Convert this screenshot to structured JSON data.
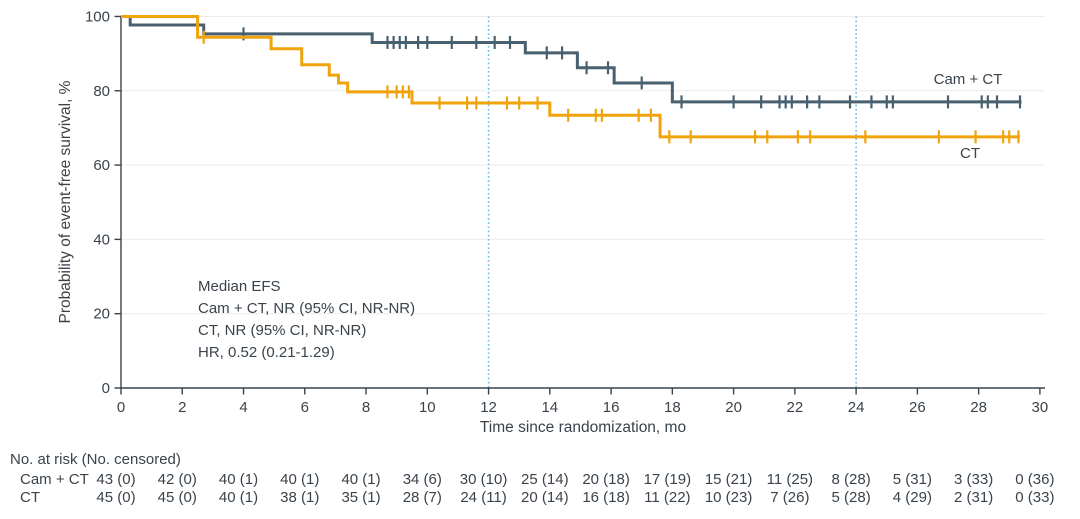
{
  "chart_data": {
    "type": "line",
    "subtype": "kaplan-meier-step",
    "title": "",
    "xlabel": "Time since randomization, mo",
    "ylabel": "Probability of event-free survival, %",
    "xlim": [
      0,
      30
    ],
    "ylim": [
      0,
      100
    ],
    "xticks": [
      0,
      2,
      4,
      6,
      8,
      10,
      12,
      14,
      16,
      18,
      20,
      22,
      24,
      26,
      28,
      30
    ],
    "yticks": [
      0,
      20,
      40,
      60,
      80,
      100
    ],
    "grid": "horizontal-light",
    "gridline_color": "#ececec",
    "axis_color": "#39424a",
    "reference_lines_x": [
      {
        "x": 12,
        "color": "#56c1e8",
        "style": "dotted"
      },
      {
        "x": 24,
        "color": "#56c1e8",
        "style": "dotted"
      }
    ],
    "legend_position": "on-curve-right",
    "series": [
      {
        "name": "Cam + CT",
        "color": "#48606f",
        "steps": [
          [
            0,
            100
          ],
          [
            0.3,
            97.7
          ],
          [
            2.7,
            95.3
          ],
          [
            8.2,
            93.0
          ],
          [
            13.2,
            90.2
          ],
          [
            14.9,
            86.2
          ],
          [
            16.1,
            82.1
          ],
          [
            18.0,
            77.0
          ]
        ],
        "end_x": 29.4,
        "censors": [
          [
            4.0,
            95.3
          ],
          [
            8.7,
            93
          ],
          [
            8.9,
            93
          ],
          [
            9.1,
            93
          ],
          [
            9.3,
            93
          ],
          [
            9.7,
            93
          ],
          [
            10.0,
            93
          ],
          [
            10.8,
            93
          ],
          [
            11.6,
            93
          ],
          [
            12.2,
            93
          ],
          [
            12.7,
            93
          ],
          [
            13.9,
            90.2
          ],
          [
            14.4,
            90.2
          ],
          [
            15.2,
            86.2
          ],
          [
            15.9,
            86.2
          ],
          [
            17.0,
            82.1
          ],
          [
            18.3,
            77
          ],
          [
            20.0,
            77
          ],
          [
            20.9,
            77
          ],
          [
            21.5,
            77
          ],
          [
            21.7,
            77
          ],
          [
            21.9,
            77
          ],
          [
            22.4,
            77
          ],
          [
            22.8,
            77
          ],
          [
            23.8,
            77
          ],
          [
            24.5,
            77
          ],
          [
            25.0,
            77
          ],
          [
            25.2,
            77
          ],
          [
            27.0,
            77
          ],
          [
            28.1,
            77
          ],
          [
            28.3,
            77
          ],
          [
            28.6,
            77
          ],
          [
            29.35,
            77
          ]
        ]
      },
      {
        "name": "CT",
        "color": "#f0a30a",
        "steps": [
          [
            0,
            100
          ],
          [
            2.5,
            94.4
          ],
          [
            4.9,
            91.3
          ],
          [
            5.9,
            87.0
          ],
          [
            6.8,
            84.2
          ],
          [
            7.1,
            82.1
          ],
          [
            7.4,
            79.7
          ],
          [
            9.5,
            76.7
          ],
          [
            14.0,
            73.4
          ],
          [
            17.6,
            67.6
          ]
        ],
        "end_x": 29.35,
        "censors": [
          [
            2.7,
            94.4
          ],
          [
            8.7,
            79.7
          ],
          [
            9.0,
            79.7
          ],
          [
            9.2,
            79.7
          ],
          [
            9.4,
            79.7
          ],
          [
            10.4,
            76.7
          ],
          [
            11.3,
            76.7
          ],
          [
            11.6,
            76.7
          ],
          [
            12.6,
            76.7
          ],
          [
            13.0,
            76.7
          ],
          [
            13.6,
            76.7
          ],
          [
            14.6,
            73.4
          ],
          [
            15.5,
            73.4
          ],
          [
            15.7,
            73.4
          ],
          [
            16.9,
            73.4
          ],
          [
            17.3,
            73.4
          ],
          [
            17.9,
            67.6
          ],
          [
            18.6,
            67.6
          ],
          [
            20.7,
            67.6
          ],
          [
            21.1,
            67.6
          ],
          [
            22.1,
            67.6
          ],
          [
            22.5,
            67.6
          ],
          [
            24.3,
            67.6
          ],
          [
            26.7,
            67.6
          ],
          [
            27.9,
            67.6
          ],
          [
            28.8,
            67.6
          ],
          [
            29.0,
            67.6
          ],
          [
            29.3,
            67.6
          ]
        ]
      }
    ],
    "annotation": {
      "lines": [
        "Median EFS",
        "Cam + CT, NR (95% CI, NR-NR)",
        "CT, NR (95% CI, NR-NR)",
        "HR, 0.52 (0.21-1.29)"
      ]
    }
  },
  "risk_table": {
    "header": "No. at risk (No. censored)",
    "rows": [
      {
        "label": "Cam + CT",
        "values": [
          "43 (0)",
          "42 (0)",
          "40 (1)",
          "40 (1)",
          "40 (1)",
          "34 (6)",
          "30 (10)",
          "25 (14)",
          "20 (18)",
          "17 (19)",
          "15 (21)",
          "11 (25)",
          "8 (28)",
          "5 (31)",
          "3 (33)",
          "0 (36)"
        ]
      },
      {
        "label": "CT",
        "values": [
          "45 (0)",
          "45 (0)",
          "40 (1)",
          "38 (1)",
          "35 (1)",
          "28 (7)",
          "24 (11)",
          "20 (14)",
          "16 (18)",
          "11 (22)",
          "10 (23)",
          "7 (26)",
          "5 (28)",
          "4 (29)",
          "2 (31)",
          "0 (33)"
        ]
      }
    ]
  }
}
